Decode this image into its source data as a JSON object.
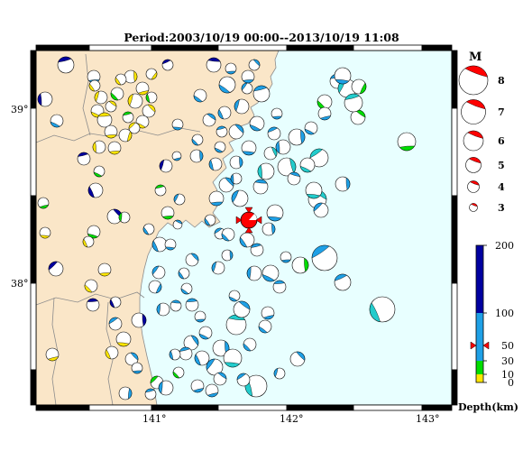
{
  "title": "Period:2003/10/19 00:00--2013/10/19 11:08",
  "map": {
    "lat_range": [
      37.35,
      39.35
    ],
    "lon_range": [
      140.2,
      143.2
    ],
    "lat_ticks": [
      {
        "value": 38,
        "label": "38°"
      },
      {
        "value": 39,
        "label": "39°"
      }
    ],
    "lon_ticks": [
      {
        "value": 141,
        "label": "141°"
      },
      {
        "value": 142,
        "label": "142°"
      },
      {
        "value": 143,
        "label": "143°"
      }
    ],
    "colors": {
      "land": "#fae6c8",
      "sea": "#e8ffff",
      "mainshock": "#ff0000"
    }
  },
  "magnitude_legend": {
    "heading": "M",
    "items": [
      {
        "label": "8",
        "value": 8
      },
      {
        "label": "7",
        "value": 7
      },
      {
        "label": "6",
        "value": 6
      },
      {
        "label": "5",
        "value": 5
      },
      {
        "label": "4",
        "value": 4
      },
      {
        "label": "3",
        "value": 3
      }
    ]
  },
  "depth_scale": {
    "title": "Depth(km)",
    "tick_labels": [
      {
        "label": "200",
        "value": 200
      },
      {
        "label": "100",
        "value": 100
      },
      {
        "label": "50",
        "value": 50
      },
      {
        "label": "30",
        "value": 30
      },
      {
        "label": "10",
        "value": 10
      },
      {
        "label": "0",
        "value": 0
      }
    ],
    "bands": [
      {
        "from": 0,
        "to": 10,
        "color": "#ffe600"
      },
      {
        "from": 10,
        "to": 30,
        "color": "#00dd00"
      },
      {
        "from": 30,
        "to": 100,
        "color": "#1ea0e6"
      },
      {
        "from": 100,
        "to": 200,
        "color": "#0000a0"
      }
    ],
    "mainshock_depth_km": 50
  },
  "mainshock": {
    "lon": 141.71,
    "lat": 38.33,
    "depth_km": 50,
    "color": "#ff0000"
  }
}
